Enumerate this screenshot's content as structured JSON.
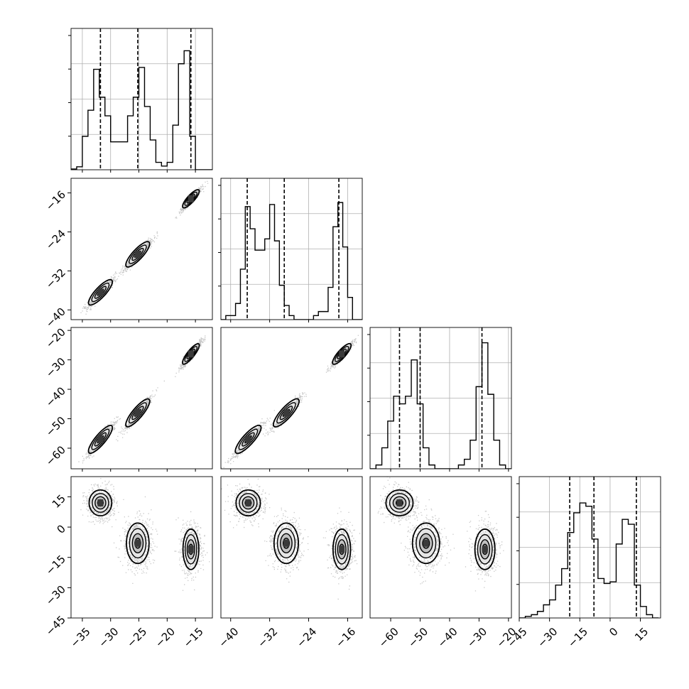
{
  "chart_data": {
    "type": "corner",
    "title": "",
    "parameters": [
      "",
      "",
      "",
      ""
    ],
    "colors": {
      "line": "#000000",
      "grid": "#b0b0b0",
      "points": "#000000"
    },
    "panel_limits": [
      [
        -37,
        -12
      ],
      [
        -42,
        -13
      ],
      [
        -67,
        -19
      ],
      [
        -45,
        25
      ]
    ],
    "ticks": [
      {
        "values": [
          -35,
          -30,
          -25,
          -20,
          -15
        ],
        "labels": [
          "−35",
          "−30",
          "−25",
          "−20",
          "−15"
        ]
      },
      {
        "values": [
          -40,
          -32,
          -24,
          -16
        ],
        "labels": [
          "−40",
          "−32",
          "−24",
          "−16"
        ]
      },
      {
        "values": [
          -60,
          -50,
          -40,
          -30,
          -20
        ],
        "labels": [
          "−60",
          "−50",
          "−40",
          "−30",
          "−20"
        ]
      },
      {
        "values": [
          -45,
          -30,
          -15,
          0,
          15
        ],
        "labels": [
          "−45",
          "−30",
          "−15",
          "0",
          "15"
        ]
      }
    ],
    "mode_centers": [
      [
        -31.8,
        -36.4,
        -57.0,
        12.0
      ],
      [
        -25.2,
        -28.6,
        -48.0,
        -8.0
      ],
      [
        -15.8,
        -17.2,
        -28.0,
        -11.0
      ]
    ],
    "histograms": [
      {
        "bin_edges": [
          -37,
          -36,
          -35,
          -34,
          -33,
          -32,
          -31,
          -30,
          -29,
          -28,
          -27,
          -26,
          -25,
          -24,
          -23,
          -22,
          -21,
          -20,
          -19,
          -18,
          -17,
          -16,
          -15,
          -14,
          -13,
          -12
        ],
        "counts": [
          2,
          8,
          90,
          160,
          270,
          195,
          145,
          75,
          75,
          75,
          145,
          195,
          275,
          170,
          80,
          20,
          10,
          20,
          120,
          285,
          320,
          90,
          0,
          0,
          0
        ],
        "ylim": [
          0,
          380
        ],
        "quantiles": [
          -31.8,
          -25.2,
          -15.8
        ]
      },
      {
        "bin_edges": [
          -42,
          -41,
          -40,
          -39,
          -38,
          -37,
          -36,
          -35,
          -34,
          -33,
          -32,
          -31,
          -30,
          -29,
          -28,
          -27,
          -26,
          -25,
          -24,
          -23,
          -22,
          -21,
          -20,
          -19,
          -18,
          -17,
          -16,
          -15,
          -14,
          -13
        ],
        "counts": [
          0,
          10,
          10,
          40,
          125,
          280,
          225,
          172,
          172,
          200,
          285,
          195,
          85,
          35,
          10,
          0,
          0,
          0,
          0,
          10,
          20,
          20,
          80,
          230,
          290,
          180,
          55,
          0,
          0
        ],
        "ylim": [
          0,
          350
        ],
        "quantiles": [
          -36.6,
          -29.0,
          -17.8
        ]
      },
      {
        "bin_edges": [
          -67,
          -65,
          -63,
          -61,
          -59,
          -57,
          -55,
          -53,
          -51,
          -49,
          -47,
          -45,
          -43,
          -41,
          -39,
          -37,
          -35,
          -33,
          -31,
          -29,
          -27,
          -25,
          -23,
          -21,
          -19
        ],
        "counts": [
          0,
          10,
          55,
          125,
          190,
          170,
          190,
          285,
          170,
          55,
          10,
          0,
          0,
          0,
          0,
          10,
          25,
          75,
          215,
          330,
          195,
          75,
          10,
          0
        ],
        "ylim": [
          0,
          370
        ],
        "quantiles": [
          -57.0,
          -50.0,
          -29.0
        ]
      },
      {
        "bin_edges": [
          -45,
          -42,
          -39,
          -36,
          -33,
          -30,
          -27,
          -24,
          -21,
          -18,
          -15,
          -12,
          -9,
          -6,
          -3,
          0,
          3,
          6,
          9,
          12,
          15,
          18,
          21,
          24
        ],
        "counts": [
          0,
          5,
          10,
          20,
          40,
          55,
          100,
          150,
          260,
          320,
          350,
          340,
          240,
          120,
          105,
          110,
          225,
          300,
          285,
          100,
          35,
          10,
          0
        ],
        "ylim": [
          0,
          430
        ],
        "quantiles": [
          -20.0,
          -8.0,
          13.0
        ]
      }
    ]
  }
}
